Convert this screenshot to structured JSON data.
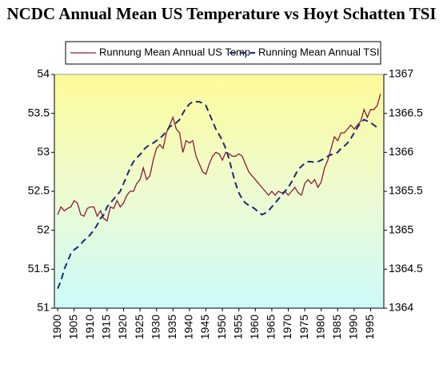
{
  "chart_data": {
    "type": "line",
    "title": "NCDC Annual Mean US Temperature vs Hoyt Schatten TSI",
    "legend": "top",
    "x": [
      1900,
      1901,
      1902,
      1903,
      1904,
      1905,
      1906,
      1907,
      1908,
      1909,
      1910,
      1911,
      1912,
      1913,
      1914,
      1915,
      1916,
      1917,
      1918,
      1919,
      1920,
      1921,
      1922,
      1923,
      1924,
      1925,
      1926,
      1927,
      1928,
      1929,
      1930,
      1931,
      1932,
      1933,
      1934,
      1935,
      1936,
      1937,
      1938,
      1939,
      1940,
      1941,
      1942,
      1943,
      1944,
      1945,
      1946,
      1947,
      1948,
      1949,
      1950,
      1951,
      1952,
      1953,
      1954,
      1955,
      1956,
      1957,
      1958,
      1959,
      1960,
      1961,
      1962,
      1963,
      1964,
      1965,
      1966,
      1967,
      1968,
      1969,
      1970,
      1971,
      1972,
      1973,
      1974,
      1975,
      1976,
      1977,
      1978,
      1979,
      1980,
      1981,
      1982,
      1983,
      1984,
      1985,
      1986,
      1987,
      1988,
      1989,
      1990,
      1991,
      1992,
      1993,
      1994,
      1995,
      1996,
      1997,
      1998
    ],
    "xlim": [
      1899,
      1999
    ],
    "xticks": [
      1900,
      1905,
      1910,
      1915,
      1920,
      1925,
      1930,
      1935,
      1940,
      1945,
      1950,
      1955,
      1960,
      1965,
      1970,
      1975,
      1980,
      1985,
      1990,
      1995
    ],
    "ylim": [
      51,
      54
    ],
    "yticks": [
      51,
      51.5,
      52,
      52.5,
      53,
      53.5,
      54
    ],
    "y2lim": [
      1364,
      1367
    ],
    "y2ticks": [
      1364,
      1364.5,
      1365,
      1365.5,
      1366,
      1366.5,
      1367
    ],
    "series": [
      {
        "name": "Runnung Mean Annual US Temp",
        "color": "#8b1a3a",
        "dash": false,
        "values": [
          52.2,
          52.3,
          52.25,
          52.28,
          52.3,
          52.38,
          52.35,
          52.2,
          52.18,
          52.28,
          52.3,
          52.3,
          52.18,
          52.25,
          52.15,
          52.12,
          52.3,
          52.28,
          52.38,
          52.3,
          52.35,
          52.45,
          52.5,
          52.5,
          52.6,
          52.65,
          52.8,
          52.65,
          52.7,
          52.9,
          53.05,
          53.1,
          53.05,
          53.25,
          53.35,
          53.45,
          53.3,
          53.25,
          53.0,
          53.15,
          53.12,
          53.15,
          52.95,
          52.85,
          52.75,
          52.72,
          52.85,
          52.95,
          53.0,
          52.98,
          52.9,
          53.0,
          52.98,
          52.95,
          52.95,
          52.98,
          52.95,
          52.85,
          52.75,
          52.7,
          52.65,
          52.6,
          52.55,
          52.5,
          52.45,
          52.5,
          52.45,
          52.5,
          52.48,
          52.5,
          52.45,
          52.5,
          52.55,
          52.48,
          52.45,
          52.6,
          52.65,
          52.6,
          52.65,
          52.55,
          52.62,
          52.8,
          52.9,
          53.05,
          53.2,
          53.15,
          53.25,
          53.25,
          53.3,
          53.35,
          53.3,
          53.35,
          53.4,
          53.55,
          53.45,
          53.55,
          53.55,
          53.6,
          53.75
        ]
      },
      {
        "name": "Running Mean Annual TSI",
        "color": "#1a2a7a",
        "dash": true,
        "axis": "y2",
        "values": [
          1364.25,
          1364.35,
          1364.5,
          1364.6,
          1364.7,
          1364.75,
          1364.78,
          1364.82,
          1364.87,
          1364.9,
          1364.95,
          1365.0,
          1365.07,
          1365.15,
          1365.2,
          1365.3,
          1365.35,
          1365.4,
          1365.45,
          1365.5,
          1365.6,
          1365.7,
          1365.8,
          1365.88,
          1365.93,
          1365.97,
          1366.03,
          1366.07,
          1366.1,
          1366.12,
          1366.15,
          1366.18,
          1366.22,
          1366.27,
          1366.33,
          1366.35,
          1366.38,
          1366.42,
          1366.5,
          1366.57,
          1366.62,
          1366.65,
          1366.65,
          1366.65,
          1366.63,
          1366.6,
          1366.5,
          1366.4,
          1366.3,
          1366.23,
          1366.15,
          1366.05,
          1365.92,
          1365.75,
          1365.6,
          1365.48,
          1365.4,
          1365.35,
          1365.32,
          1365.3,
          1365.27,
          1365.23,
          1365.2,
          1365.22,
          1365.25,
          1365.3,
          1365.35,
          1365.4,
          1365.45,
          1365.5,
          1365.55,
          1365.62,
          1365.7,
          1365.78,
          1365.82,
          1365.86,
          1365.88,
          1365.88,
          1365.87,
          1365.88,
          1365.9,
          1365.92,
          1365.95,
          1365.97,
          1365.98,
          1366.0,
          1366.05,
          1366.08,
          1366.12,
          1366.18,
          1366.25,
          1366.32,
          1366.38,
          1366.42,
          1366.4,
          1366.38,
          1366.35,
          1366.32,
          null
        ]
      }
    ]
  }
}
